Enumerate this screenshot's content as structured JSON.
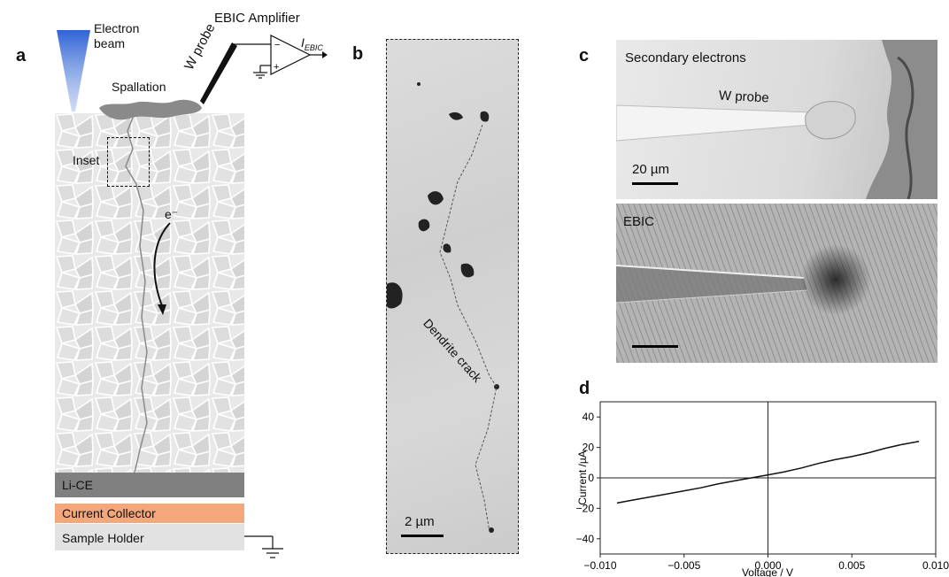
{
  "panels": [
    "a",
    "b",
    "c",
    "d"
  ],
  "panel_a": {
    "electron_beam": "Electron\nbeam",
    "amplifier": "EBIC Amplifier",
    "current_symbol": "I",
    "current_subscript": "EBIC",
    "w_probe": "W probe",
    "spallation": "Spallation",
    "inset": "Inset",
    "electron": "e⁻",
    "layers": [
      "Li-CE",
      "Current Collector",
      "Sample Holder"
    ],
    "colors": {
      "li_ce": "#808080",
      "current_collector": "#f4a77b",
      "sample_holder": "#e2e2e2",
      "beam": "#3a6fd8"
    }
  },
  "panel_b": {
    "annotation": "Dendrite crack",
    "scale_bar": "2 µm"
  },
  "panel_c": {
    "top_label": "Secondary electrons",
    "probe_label": "W probe",
    "scale_bar": "20 µm",
    "bottom_label": "EBIC"
  },
  "chart_data": {
    "type": "line",
    "xlabel": "Voltage / V",
    "ylabel": "Current /µA",
    "xlim": [
      -0.01,
      0.01
    ],
    "ylim": [
      -50,
      50
    ],
    "xticks": [
      "−0.010",
      "−0.005",
      "0.000",
      "0.005",
      "0.010"
    ],
    "yticks": [
      "40",
      "20",
      "0",
      "−20",
      "−40"
    ],
    "x": [
      -0.009,
      -0.008,
      -0.007,
      -0.006,
      -0.005,
      -0.004,
      -0.003,
      -0.002,
      -0.001,
      0.0,
      0.001,
      0.002,
      0.003,
      0.004,
      0.005,
      0.006,
      0.007,
      0.008,
      0.009
    ],
    "y": [
      -16.5,
      -14.5,
      -12.5,
      -10.5,
      -8.5,
      -6.5,
      -4.0,
      -2.0,
      0.0,
      2.0,
      4.0,
      6.5,
      9.5,
      12.0,
      14.0,
      16.5,
      19.5,
      22.0,
      24.0
    ],
    "grid": false
  }
}
